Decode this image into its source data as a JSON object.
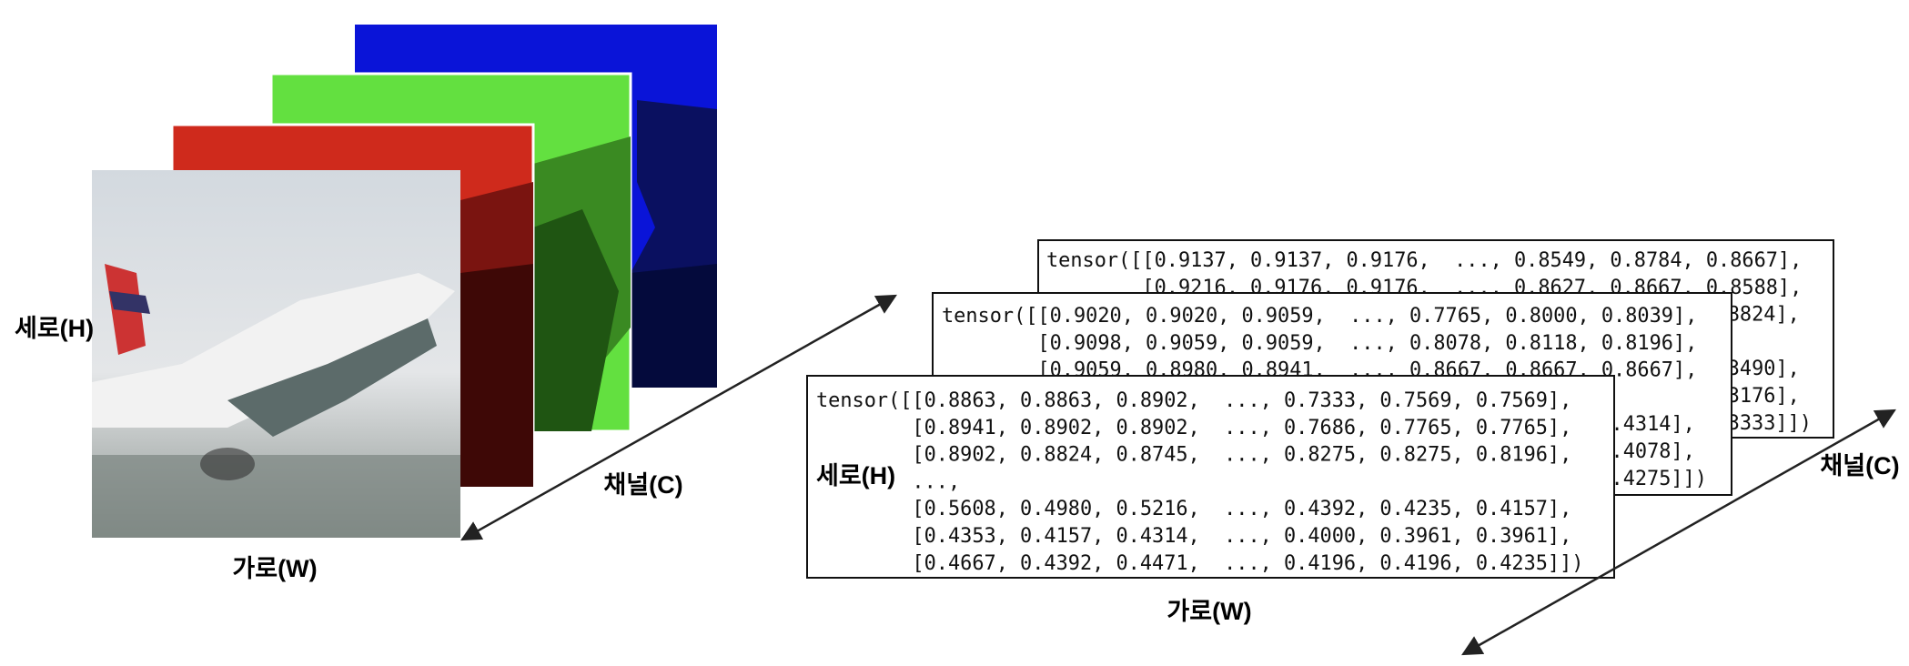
{
  "image_side": {
    "height_label": "세로(H)",
    "width_label": "가로(W)",
    "channel_label": "채널(C)"
  },
  "tensor_side": {
    "height_label": "세로(H)",
    "width_label": "가로(W)",
    "channel_label": "채널(C)",
    "tensors": [
      {
        "lines": [
          "tensor([[0.9137, 0.9137, 0.9176,  ..., 0.8549, 0.8784, 0.8667],",
          "        [0.9216, 0.9176, 0.9176,  ..., 0.8627, 0.8667, 0.8588],"
        ],
        "tails": [
          ".8824],",
          ".3490],",
          ".3176],",
          ".3333]])"
        ]
      },
      {
        "lines": [
          "tensor([[0.9020, 0.9020, 0.9059,  ..., 0.7765, 0.8000, 0.8039],",
          "        [0.9098, 0.9059, 0.9059,  ..., 0.8078, 0.8118, 0.8196],",
          "        [0.9059, 0.8980, 0.8941,  ..., 0.8667, 0.8667, 0.8667],"
        ],
        "tails": [
          ".4314],",
          ".4078],",
          ".4275]])"
        ]
      },
      {
        "lines": [
          "tensor([[0.8863, 0.8863, 0.8902,  ..., 0.7333, 0.7569, 0.7569],",
          "        [0.8941, 0.8902, 0.8902,  ..., 0.7686, 0.7765, 0.7765],",
          "        [0.8902, 0.8824, 0.8745,  ..., 0.8275, 0.8275, 0.8196],",
          "        ...,",
          "        [0.5608, 0.4980, 0.5216,  ..., 0.4392, 0.4235, 0.4157],",
          "        [0.4353, 0.4157, 0.4314,  ..., 0.4000, 0.3961, 0.3961],",
          "        [0.4667, 0.4392, 0.4471,  ..., 0.4196, 0.4196, 0.4235]])"
        ],
        "tails": []
      }
    ]
  }
}
